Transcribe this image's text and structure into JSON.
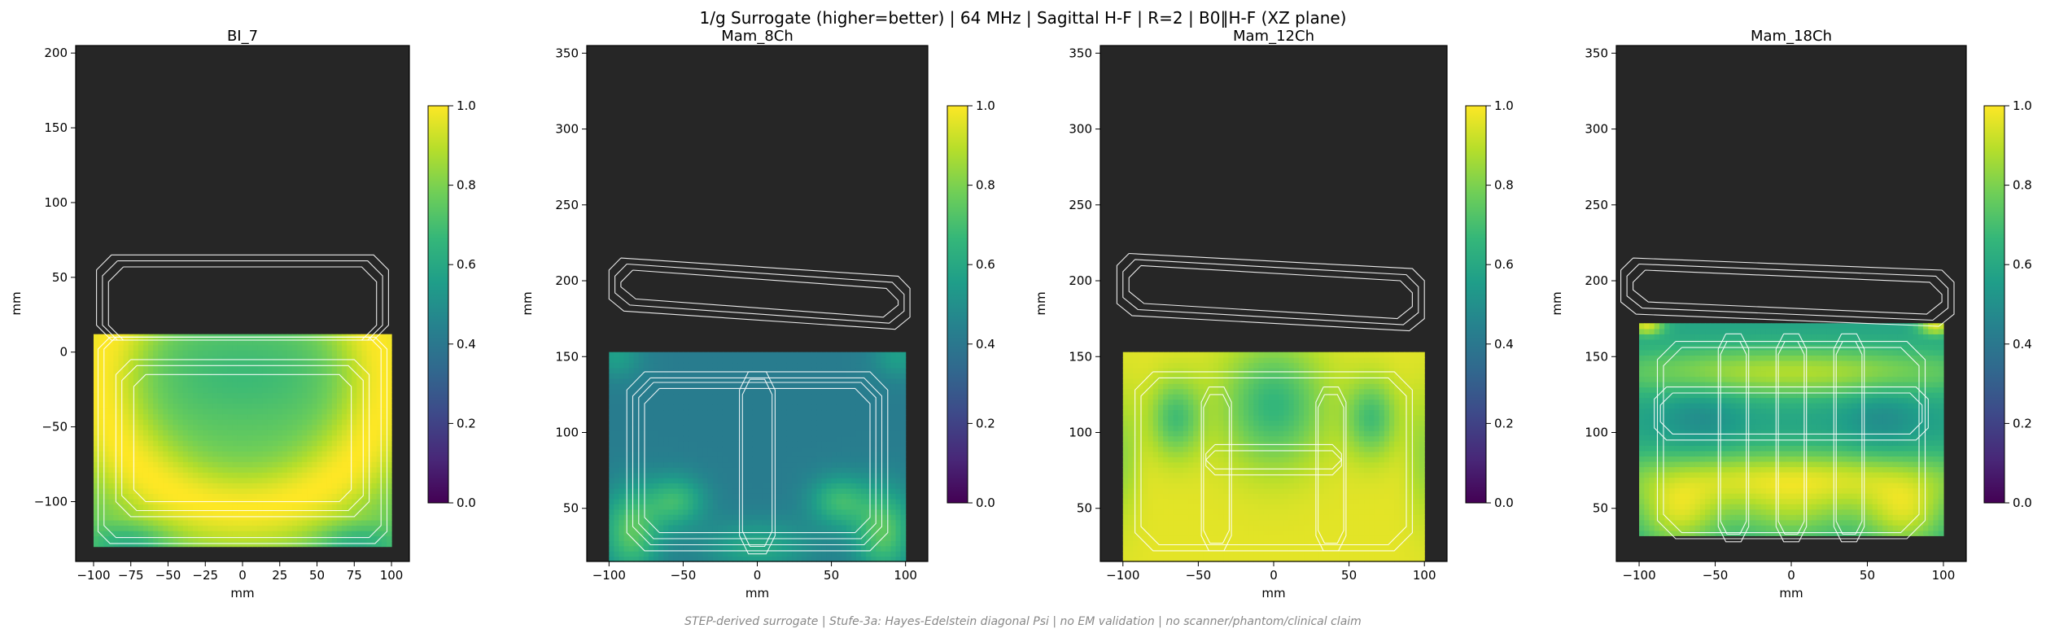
{
  "figure": {
    "suptitle": "1/g Surrogate (higher=better) | 64 MHz | Sagittal H-F | R=2 | B0‖H-F (XZ plane)",
    "footer": "STEP-derived surrogate | Stufe-3a: Hayes-Edelstein diagonal Psi | no EM validation | no scanner/phantom/clinical claim"
  },
  "colors": {
    "background_region": "#262626",
    "outline": "#ffffff",
    "viridis": [
      "#440154",
      "#482878",
      "#3e4989",
      "#31688e",
      "#26828e",
      "#1f9e89",
      "#35b779",
      "#6ece58",
      "#b5de2b",
      "#fde725"
    ]
  },
  "chart_data": [
    {
      "type": "heatmap",
      "title": "BI_7",
      "xlabel": "mm",
      "ylabel": "mm",
      "xlim": [
        -112,
        112
      ],
      "ylim": [
        -140,
        205
      ],
      "xticks": [
        -100,
        -75,
        -50,
        -25,
        0,
        25,
        50,
        75,
        100
      ],
      "yticks": [
        -100,
        -50,
        0,
        50,
        100,
        150,
        200
      ],
      "field_extent": {
        "x": [
          -100,
          100
        ],
        "y": [
          -130,
          12
        ]
      },
      "pattern": "bi7",
      "colorbar": {
        "min": 0.0,
        "max": 1.0,
        "ticks": [
          "0.0",
          "0.2",
          "0.4",
          "0.6",
          "0.8",
          "1.0"
        ],
        "colormap": "viridis"
      }
    },
    {
      "type": "heatmap",
      "title": "Mam_8Ch",
      "xlabel": "mm",
      "ylabel": "mm",
      "xlim": [
        -115,
        115
      ],
      "ylim": [
        15,
        355
      ],
      "xticks": [
        -100,
        -50,
        0,
        50,
        100
      ],
      "yticks": [
        50,
        100,
        150,
        200,
        250,
        300,
        350
      ],
      "field_extent": {
        "x": [
          -100,
          100
        ],
        "y": [
          15,
          153
        ]
      },
      "pattern": "mam8",
      "colorbar": {
        "min": 0.0,
        "max": 1.0,
        "ticks": [
          "0.0",
          "0.2",
          "0.4",
          "0.6",
          "0.8",
          "1.0"
        ],
        "colormap": "viridis"
      }
    },
    {
      "type": "heatmap",
      "title": "Mam_12Ch",
      "xlabel": "mm",
      "ylabel": "mm",
      "xlim": [
        -115,
        115
      ],
      "ylim": [
        15,
        355
      ],
      "xticks": [
        -100,
        -50,
        0,
        50,
        100
      ],
      "yticks": [
        50,
        100,
        150,
        200,
        250,
        300,
        350
      ],
      "field_extent": {
        "x": [
          -100,
          100
        ],
        "y": [
          15,
          153
        ]
      },
      "pattern": "mam12",
      "colorbar": {
        "min": 0.0,
        "max": 1.0,
        "ticks": [
          "0.0",
          "0.2",
          "0.4",
          "0.6",
          "0.8",
          "1.0"
        ],
        "colormap": "viridis"
      }
    },
    {
      "type": "heatmap",
      "title": "Mam_18Ch",
      "xlabel": "mm",
      "ylabel": "mm",
      "xlim": [
        -115,
        115
      ],
      "ylim": [
        15,
        355
      ],
      "xticks": [
        -100,
        -50,
        0,
        50,
        100
      ],
      "yticks": [
        50,
        100,
        150,
        200,
        250,
        300,
        350
      ],
      "field_extent": {
        "x": [
          -100,
          100
        ],
        "y": [
          32,
          172
        ]
      },
      "pattern": "mam18",
      "colorbar": {
        "min": 0.0,
        "max": 1.0,
        "ticks": [
          "0.0",
          "0.2",
          "0.4",
          "0.6",
          "0.8",
          "1.0"
        ],
        "colormap": "viridis"
      }
    }
  ]
}
